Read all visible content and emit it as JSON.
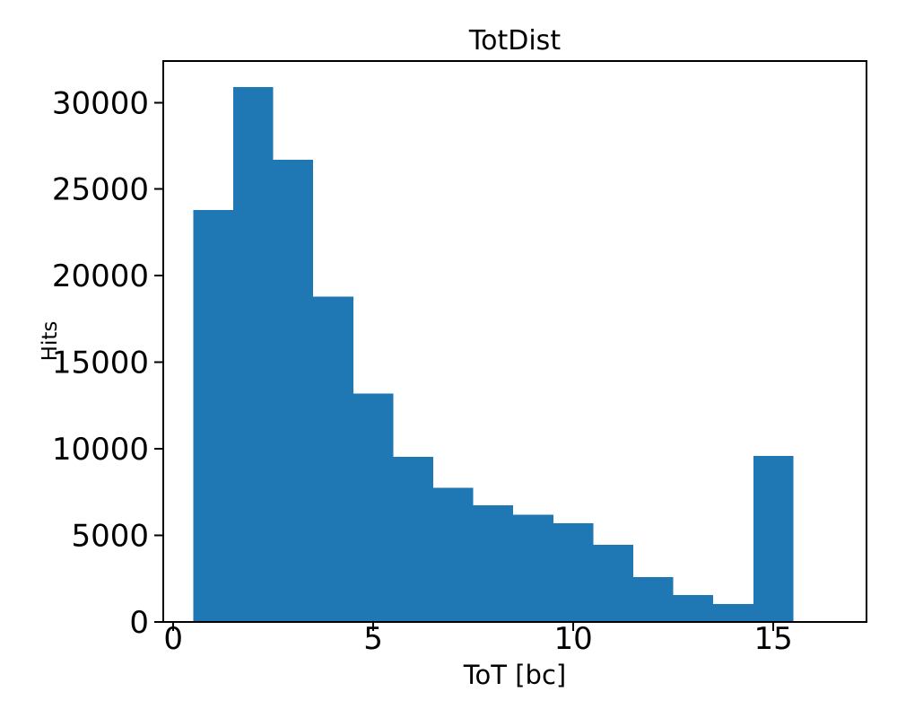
{
  "figure": {
    "background": "#ffffff"
  },
  "chart_data": {
    "type": "bar",
    "subtype": "histogram",
    "title": "TotDist",
    "xlabel": "ToT [bc]",
    "ylabel": "Hits",
    "bin_edges": [
      0.5,
      1.5,
      2.5,
      3.5,
      4.5,
      5.5,
      6.5,
      7.5,
      8.5,
      9.5,
      10.5,
      11.5,
      12.5,
      13.5,
      14.5,
      15.5
    ],
    "values": [
      23800,
      30900,
      26700,
      18800,
      13200,
      9530,
      7760,
      6740,
      6200,
      5690,
      4470,
      2590,
      1550,
      1040,
      9580
    ],
    "xticks": [
      0,
      5,
      10,
      15
    ],
    "yticks": [
      0,
      5000,
      10000,
      15000,
      20000,
      25000,
      30000
    ],
    "xlim": [
      -0.25,
      17.33
    ],
    "ylim": [
      0,
      32400
    ],
    "bar_color": "#1f77b4",
    "axis_color": "#000000",
    "grid": false,
    "legend": false
  }
}
